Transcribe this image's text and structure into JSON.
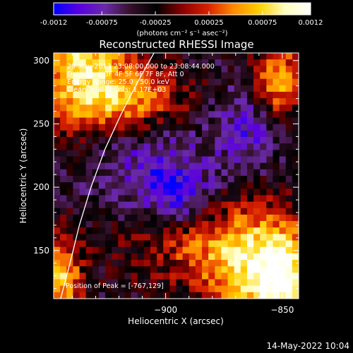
{
  "chart_data": {
    "type": "heatmap",
    "title": "Reconstructed RHESSI Image",
    "xlabel": "Heliocentric X (arcsec)",
    "ylabel": "Heliocentric Y (arcsec)",
    "xlim": [
      -948,
      -843
    ],
    "ylim": [
      112,
      306
    ],
    "x_ticks": [
      -900,
      -850,
      -800
    ],
    "y_ticks": [
      150,
      200,
      250,
      300
    ],
    "colorbar": {
      "range": [
        -0.0012,
        0.0012
      ],
      "ticks": [
        "-0.0012",
        "-0.00075",
        "-0.00025",
        "0.00025",
        "0.00075",
        "0.0012"
      ],
      "label": "(photons cm⁻² s⁻¹ asec⁻²)",
      "colors": [
        "#0000ff",
        "#5a00e0",
        "#6a2aa8",
        "#341028",
        "#000000",
        "#8a0000",
        "#d82000",
        "#ff8a00",
        "#ffd000",
        "#ffffc0",
        "#ffffff"
      ]
    },
    "annotations": {
      "time": "29-May-2013 23:08:00.000 to 23:08:44.000",
      "detectors": "Detectors: 3F 4F 5F 6F 7F 8F, Att 0",
      "energy": "Energy Range: 25.0 - 50.0 keV",
      "method": "Clean     Total counts: 1.17E+03",
      "peak": "Position of Peak = [-767,129]"
    },
    "limb_curve": [
      [
        -945,
        112
      ],
      [
        -941,
        140
      ],
      [
        -937,
        170
      ],
      [
        -932,
        200
      ],
      [
        -926,
        230
      ],
      [
        -919,
        258
      ],
      [
        -912,
        283
      ],
      [
        -905,
        306
      ]
    ],
    "grid": false
  },
  "footer": {
    "date": "14-May-2022 10:04"
  }
}
